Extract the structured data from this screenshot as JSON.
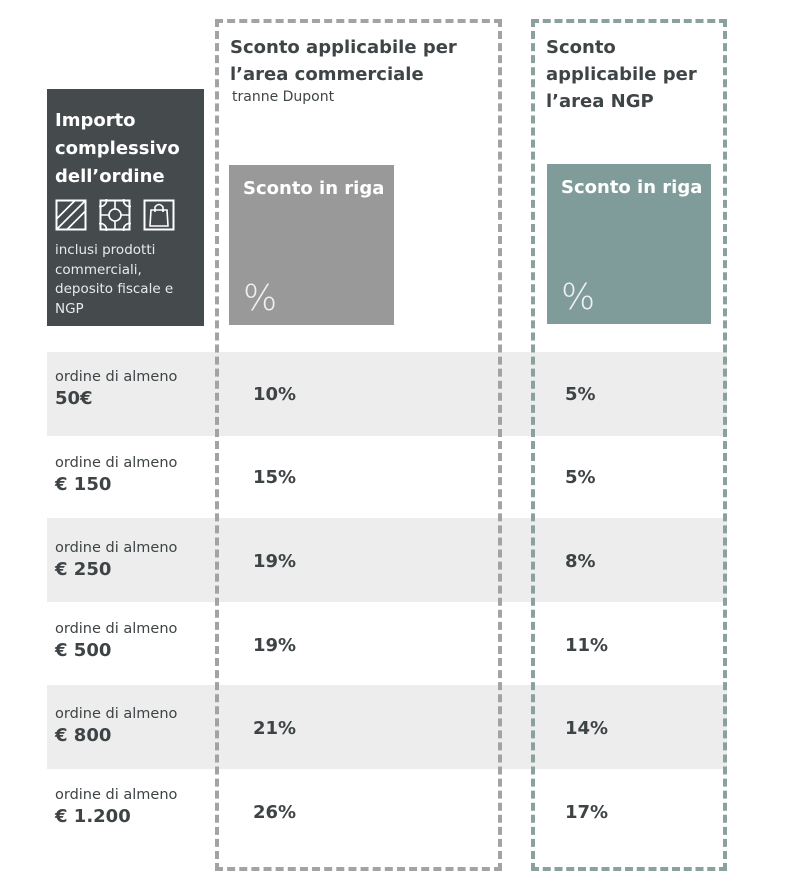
{
  "columns": {
    "commerciale": {
      "title": "Sconto applicabile per l’area commerciale",
      "subtitle": "tranne Dupont",
      "box_label": "Sconto in riga",
      "box_sign": "%"
    },
    "ngp": {
      "title": "Sconto applicabile per l’area NGP",
      "box_label": "Sconto in riga",
      "box_sign": "%"
    }
  },
  "import_header": {
    "title": "Importo complessivo dell’ordine",
    "icons": [
      "flooring-icon",
      "tile-pattern-icon",
      "shopping-bag-icon"
    ],
    "note": "inclusi prodotti commerciali, deposito fiscale e NGP"
  },
  "rows": [
    {
      "prefix": "ordine di almeno",
      "amount": "50€",
      "commerciale": "10%",
      "ngp": "5%"
    },
    {
      "prefix": "ordine di almeno",
      "amount": "€ 150",
      "commerciale": "15%",
      "ngp": "5%"
    },
    {
      "prefix": "ordine di almeno",
      "amount": "€ 250",
      "commerciale": "19%",
      "ngp": "8%"
    },
    {
      "prefix": "ordine di almeno",
      "amount": "€ 500",
      "commerciale": "19%",
      "ngp": "11%"
    },
    {
      "prefix": "ordine di almeno",
      "amount": "€ 800",
      "commerciale": "21%",
      "ngp": "14%"
    },
    {
      "prefix": "ordine di almeno",
      "amount": "€ 1.200",
      "commerciale": "26%",
      "ngp": "17%"
    }
  ],
  "colors": {
    "header_dark": "#454b4d",
    "commerciale_grey": "#999999",
    "ngp_teal": "#809c9a",
    "band_grey": "#ededed"
  }
}
